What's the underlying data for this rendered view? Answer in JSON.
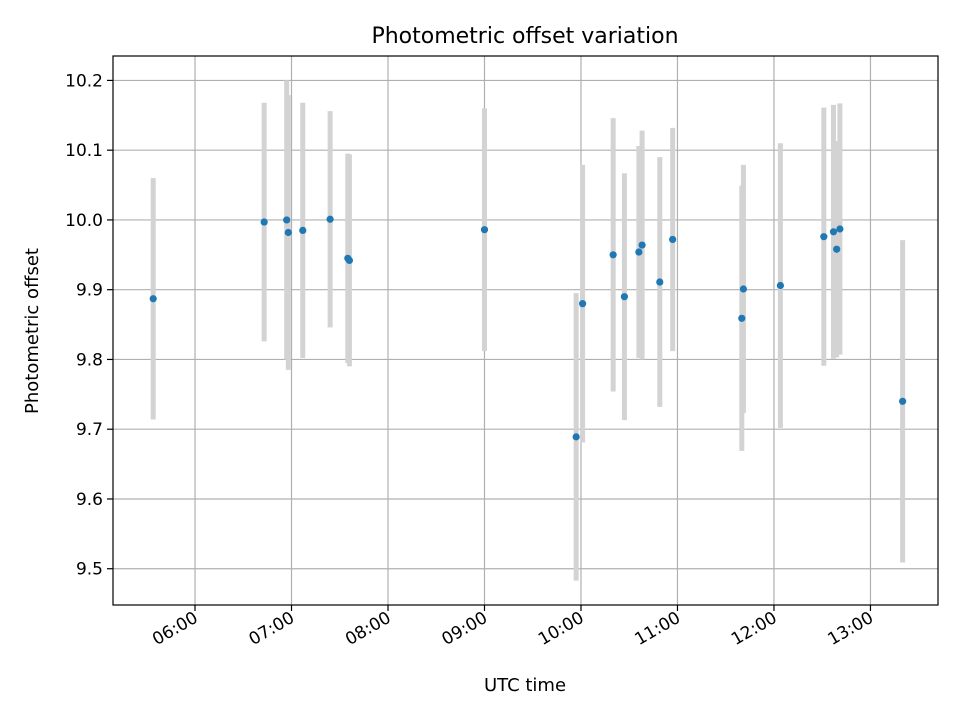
{
  "chart_data": {
    "type": "scatter",
    "title": "Photometric offset variation",
    "xlabel": "UTC time",
    "ylabel": "Photometric offset",
    "x_axis_type": "time",
    "xlim": [
      "05:09",
      "13:42"
    ],
    "ylim": [
      9.448,
      10.235
    ],
    "xticks": [
      "06:00",
      "07:00",
      "08:00",
      "09:00",
      "10:00",
      "11:00",
      "12:00",
      "13:00"
    ],
    "yticks": [
      9.5,
      9.6,
      9.7,
      9.8,
      9.9,
      10.0,
      10.1,
      10.2
    ],
    "ytick_labels": [
      "9.5",
      "9.6",
      "9.7",
      "9.8",
      "9.9",
      "10.0",
      "10.1",
      "10.2"
    ],
    "grid": true,
    "legend": null,
    "colors": {
      "points": "#1f77b4",
      "errorbars": "#d3d3d3",
      "grid": "#b0b0b0"
    },
    "points": [
      {
        "x": "05:34",
        "y": 9.887,
        "yerr": 0.173
      },
      {
        "x": "06:43",
        "y": 9.997,
        "yerr": 0.171
      },
      {
        "x": "06:57",
        "y": 10.0,
        "yerr": 0.2
      },
      {
        "x": "06:58",
        "y": 9.982,
        "yerr": 0.197
      },
      {
        "x": "07:07",
        "y": 9.985,
        "yerr": 0.183
      },
      {
        "x": "07:24",
        "y": 10.001,
        "yerr": 0.155
      },
      {
        "x": "07:35",
        "y": 9.945,
        "yerr": 0.15
      },
      {
        "x": "07:36",
        "y": 9.942,
        "yerr": 0.152
      },
      {
        "x": "09:00",
        "y": 9.986,
        "yerr": 0.174
      },
      {
        "x": "09:57",
        "y": 9.689,
        "yerr": 0.206
      },
      {
        "x": "10:01",
        "y": 9.88,
        "yerr": 0.199
      },
      {
        "x": "10:20",
        "y": 9.95,
        "yerr": 0.196
      },
      {
        "x": "10:27",
        "y": 9.89,
        "yerr": 0.177
      },
      {
        "x": "10:36",
        "y": 9.954,
        "yerr": 0.152
      },
      {
        "x": "10:38",
        "y": 9.964,
        "yerr": 0.164
      },
      {
        "x": "10:49",
        "y": 9.911,
        "yerr": 0.179
      },
      {
        "x": "10:57",
        "y": 9.972,
        "yerr": 0.16
      },
      {
        "x": "11:40",
        "y": 9.859,
        "yerr": 0.19
      },
      {
        "x": "11:41",
        "y": 9.901,
        "yerr": 0.178
      },
      {
        "x": "12:04",
        "y": 9.906,
        "yerr": 0.204
      },
      {
        "x": "12:31",
        "y": 9.976,
        "yerr": 0.185
      },
      {
        "x": "12:37",
        "y": 9.983,
        "yerr": 0.182
      },
      {
        "x": "12:39",
        "y": 9.958,
        "yerr": 0.155
      },
      {
        "x": "12:41",
        "y": 9.987,
        "yerr": 0.18
      },
      {
        "x": "13:20",
        "y": 9.74,
        "yerr": 0.231
      }
    ]
  }
}
